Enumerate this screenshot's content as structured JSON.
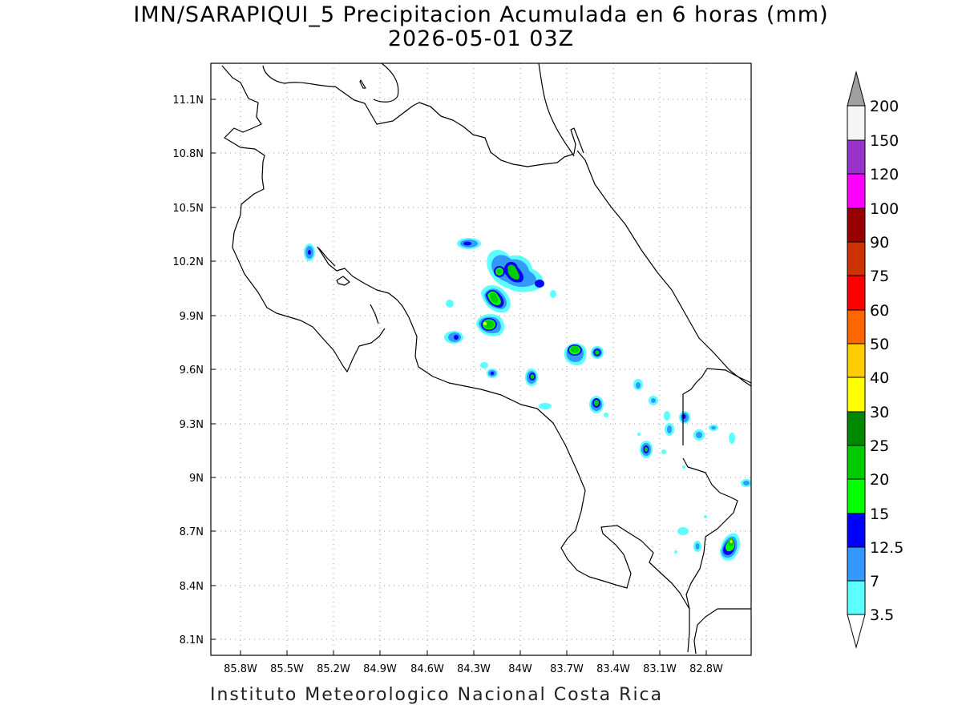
{
  "title": "IMN/SARAPIQUI_5 Precipitacion Acumulada en 6 horas (mm)",
  "subtitle": "2026-05-01 03Z",
  "footer": "Instituto Meteorologico Nacional Costa Rica",
  "map": {
    "lon_ticks": [
      "85.8W",
      "85.5W",
      "85.2W",
      "84.9W",
      "84.6W",
      "84.3W",
      "84W",
      "83.7W",
      "83.4W",
      "83.1W",
      "82.8W"
    ],
    "lat_ticks": [
      "11.1N",
      "10.8N",
      "10.5N",
      "10.2N",
      "9.9N",
      "9.6N",
      "9.3N",
      "9N",
      "8.7N",
      "8.4N",
      "8.1N"
    ],
    "grid": true
  },
  "colorbar": {
    "levels": [
      "3.5",
      "7",
      "12.5",
      "15",
      "20",
      "25",
      "30",
      "40",
      "50",
      "60",
      "75",
      "90",
      "100",
      "120",
      "150",
      "200"
    ],
    "colors": [
      "#ffffff",
      "#5cffff",
      "#3399ff",
      "#0000ff",
      "#00ff00",
      "#00cc00",
      "#008800",
      "#ffff00",
      "#ffcc00",
      "#ff6600",
      "#ff0000",
      "#cc3300",
      "#990000",
      "#ff00ff",
      "#9933cc",
      "#f5f5f5"
    ],
    "upper_arrow_color": "#a0a0a0",
    "lower_arrow_color": "#ffffff"
  },
  "precip_cells": [
    {
      "lon": -84.3,
      "lat": 10.29,
      "max": "12.5"
    },
    {
      "lon": -84.1,
      "lat": 10.16,
      "max": "25"
    },
    {
      "lon": -84.0,
      "lat": 10.17,
      "max": "20"
    },
    {
      "lon": -83.88,
      "lat": 10.08,
      "max": "15"
    },
    {
      "lon": -84.15,
      "lat": 10.0,
      "max": "25"
    },
    {
      "lon": -84.18,
      "lat": 9.85,
      "max": "30"
    },
    {
      "lon": -84.38,
      "lat": 9.78,
      "max": "15"
    },
    {
      "lon": -85.37,
      "lat": 10.25,
      "max": "12.5"
    },
    {
      "lon": -83.64,
      "lat": 9.72,
      "max": "25"
    },
    {
      "lon": -83.5,
      "lat": 9.69,
      "max": "20"
    },
    {
      "lon": -83.92,
      "lat": 9.55,
      "max": "20"
    },
    {
      "lon": -84.18,
      "lat": 9.57,
      "max": "12.5"
    },
    {
      "lon": -83.51,
      "lat": 9.4,
      "max": "20"
    },
    {
      "lon": -83.17,
      "lat": 9.15,
      "max": "15"
    },
    {
      "lon": -82.92,
      "lat": 9.33,
      "max": "12.5"
    },
    {
      "lon": -82.68,
      "lat": 8.62,
      "max": "30"
    }
  ]
}
